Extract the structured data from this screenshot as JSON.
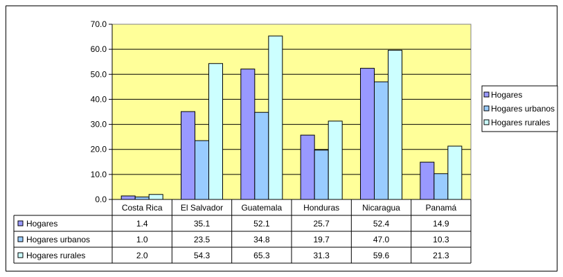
{
  "chart_data": {
    "type": "bar",
    "title": "",
    "xlabel": "",
    "ylabel": "",
    "ylim": [
      0,
      70
    ],
    "ytick_step": 10,
    "ytick_format": "0.0",
    "grid": true,
    "legend_position": "right",
    "show_data_table": true,
    "plot_background": "#ffff99",
    "categories": [
      "Costa Rica",
      "El Salvador",
      "Guatemala",
      "Honduras",
      "Nicaragua",
      "Panamá"
    ],
    "series": [
      {
        "name": "Hogares",
        "color": "#9999ff",
        "values": [
          1.4,
          35.1,
          52.1,
          25.7,
          52.4,
          14.9
        ]
      },
      {
        "name": "Hogares urbanos",
        "color": "#99ccff",
        "values": [
          1.0,
          23.5,
          34.8,
          19.7,
          47.0,
          10.3
        ]
      },
      {
        "name": "Hogares rurales",
        "color": "#ccffff",
        "values": [
          2.0,
          54.3,
          65.3,
          31.3,
          59.6,
          21.3
        ]
      }
    ]
  }
}
